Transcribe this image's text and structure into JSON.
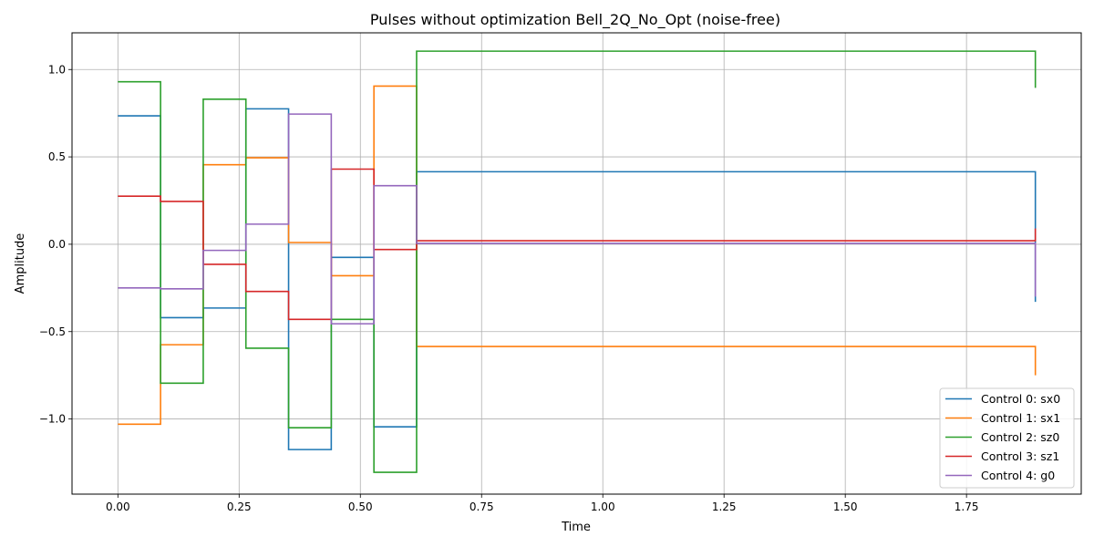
{
  "chart_data": {
    "type": "line",
    "step": "post",
    "title": "Pulses without optimization Bell_2Q_No_Opt (noise-free)",
    "xlabel": "Time",
    "ylabel": "Amplitude",
    "xlim": [
      -0.0946,
      1.9866
    ],
    "ylim": [
      -1.43,
      1.21
    ],
    "xticks": [
      0.0,
      0.25,
      0.5,
      0.75,
      1.0,
      1.25,
      1.5,
      1.75
    ],
    "xtick_labels": [
      "0.00",
      "0.25",
      "0.50",
      "0.75",
      "1.00",
      "1.25",
      "1.50",
      "1.75"
    ],
    "yticks": [
      -1.0,
      -0.5,
      0.0,
      0.5,
      1.0
    ],
    "ytick_labels": [
      "−1.0",
      "−0.5",
      "0.0",
      "0.5",
      "1.0"
    ],
    "grid": true,
    "legend_position": "lower right",
    "x": [
      0.0,
      0.088,
      0.176,
      0.264,
      0.352,
      0.44,
      0.528,
      0.616,
      1.892
    ],
    "series": [
      {
        "name": "Control 0: sx0",
        "color": "#1f77b4",
        "values": [
          0.735,
          -0.42,
          -0.365,
          0.775,
          -1.175,
          -0.075,
          -1.045,
          0.415,
          -0.33
        ]
      },
      {
        "name": "Control 1: sx1",
        "color": "#ff7f0e",
        "values": [
          -1.03,
          -0.575,
          0.455,
          0.495,
          0.01,
          -0.18,
          0.905,
          -0.585,
          -0.75
        ]
      },
      {
        "name": "Control 2: sz0",
        "color": "#2ca02c",
        "values": [
          0.93,
          -0.795,
          0.83,
          -0.595,
          -1.05,
          -0.43,
          -1.305,
          1.105,
          0.895
        ]
      },
      {
        "name": "Control 3: sz1",
        "color": "#d62728",
        "values": [
          0.275,
          0.245,
          -0.115,
          -0.27,
          -0.43,
          0.43,
          -0.03,
          0.02,
          0.09
        ]
      },
      {
        "name": "Control 4: g0",
        "color": "#9467bd",
        "values": [
          -0.25,
          -0.255,
          -0.035,
          0.115,
          0.745,
          -0.455,
          0.335,
          0.005,
          -0.3
        ]
      }
    ]
  }
}
